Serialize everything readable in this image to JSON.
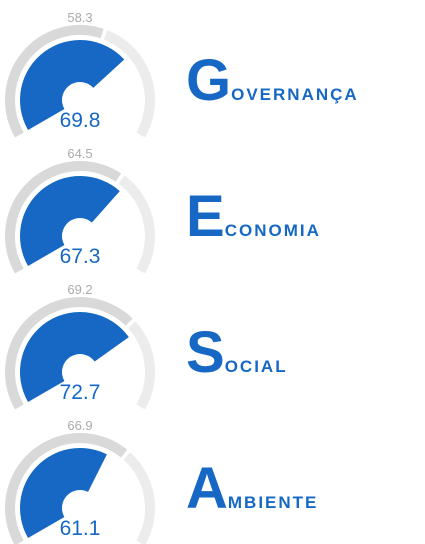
{
  "chart_data": [
    {
      "type": "gauge",
      "title": "GOVERNANÇA",
      "value": 69.8,
      "reference": 58.3,
      "ylim": [
        0,
        100
      ],
      "color": "#1668c4"
    },
    {
      "type": "gauge",
      "title": "ECONOMIA",
      "value": 67.3,
      "reference": 64.5,
      "ylim": [
        0,
        100
      ],
      "color": "#1668c4"
    },
    {
      "type": "gauge",
      "title": "SOCIAL",
      "value": 72.7,
      "reference": 69.2,
      "ylim": [
        0,
        100
      ],
      "color": "#1668c4"
    },
    {
      "type": "gauge",
      "title": "AMBIENTE",
      "value": 61.1,
      "reference": 66.9,
      "ylim": [
        0,
        100
      ],
      "color": "#1668c4"
    }
  ]
}
